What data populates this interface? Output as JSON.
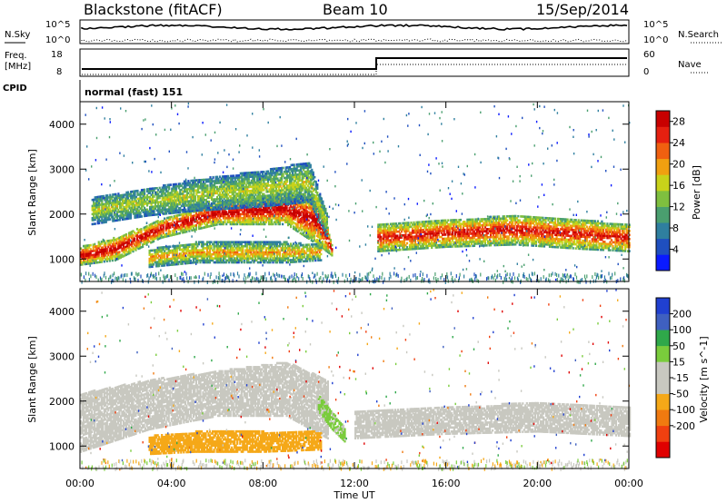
{
  "header": {
    "station": "Blackstone (fitACF)",
    "beam": "Beam 10",
    "date": "15/Sep/2014"
  },
  "panels": {
    "nsky": {
      "label": "N.Sky",
      "right_label": "N.Search",
      "ticks": [
        "10^5",
        "10^0"
      ],
      "right_ticks": [
        "10^5",
        "10^0"
      ]
    },
    "freq": {
      "label_line1": "Freq.",
      "label_line2": "[MHz]",
      "ticks": [
        "18",
        "8"
      ],
      "right_label": "Nave",
      "right_ticks": [
        "60",
        "0"
      ]
    },
    "cpid": {
      "label": "CPID",
      "text": "normal (fast) 151"
    }
  },
  "colors": {
    "power_scale": [
      "#0a1aff",
      "#1f4fbf",
      "#2f7f9f",
      "#4a9f6f",
      "#7fbf3f",
      "#c8d21a",
      "#f0a010",
      "#f06010",
      "#e52010",
      "#c80000"
    ],
    "velocity_scale": [
      "#e00000",
      "#f04010",
      "#f07a10",
      "#f5a818",
      "#c8c8c0",
      "#c8c8c0",
      "#7acc3c",
      "#2fa84a",
      "#3f60c0",
      "#2040d0"
    ]
  },
  "chart_data": [
    {
      "type": "heatmap",
      "title": "",
      "xlabel": "",
      "ylabel": "Slant Range [km]",
      "xlim": [
        0,
        24
      ],
      "ylim": [
        500,
        4500
      ],
      "yticks": [
        1000,
        2000,
        3000,
        4000
      ],
      "colorbar": {
        "label": "Power [dB]",
        "ticks": [
          4,
          8,
          12,
          16,
          20,
          24,
          28
        ],
        "range": [
          0,
          30
        ]
      },
      "bands": [
        {
          "name": "",
          "x": [
            0.0,
            1.5,
            3.5,
            6.0,
            9.0,
            10.5,
            11.0
          ],
          "y_low": [
            900,
            1000,
            1500,
            1800,
            1800,
            1300,
            1100
          ],
          "y_high": [
            1300,
            1500,
            1900,
            2300,
            2500,
            2400,
            1300
          ],
          "power": 26
        },
        {
          "name": "",
          "x": [
            0.5,
            3.0,
            5.0,
            8.0,
            10.0,
            10.8
          ],
          "y_low": [
            1800,
            2000,
            2100,
            2200,
            2300,
            1500
          ],
          "y_high": [
            2400,
            2600,
            2800,
            3000,
            3200,
            2000
          ],
          "power": 14
        },
        {
          "name": "",
          "x": [
            3.0,
            5.0,
            7.0,
            9.0,
            10.5
          ],
          "y_low": [
            850,
            950,
            950,
            950,
            1000
          ],
          "y_high": [
            1250,
            1400,
            1400,
            1400,
            1350
          ],
          "power": 18
        },
        {
          "name": "",
          "x": [
            13.0,
            16.0,
            19.0,
            22.0,
            24.0
          ],
          "y_low": [
            1200,
            1300,
            1350,
            1250,
            1200
          ],
          "y_high": [
            1800,
            1900,
            2000,
            1900,
            1800
          ],
          "power": 24
        }
      ]
    },
    {
      "type": "heatmap",
      "title": "",
      "xlabel": "Time UT",
      "ylabel": "Slant Range [km]",
      "xlim": [
        0,
        24
      ],
      "ylim": [
        500,
        4500
      ],
      "xticks": [
        "00:00",
        "04:00",
        "08:00",
        "12:00",
        "16:00",
        "20:00",
        "00:00"
      ],
      "yticks": [
        1000,
        2000,
        3000,
        4000
      ],
      "colorbar": {
        "label": "Velocity [m s^-1]",
        "ticks": [
          200,
          100,
          50,
          15,
          -15,
          -50,
          -100,
          -200
        ]
      },
      "bands": [
        {
          "name": "",
          "x": [
            0.0,
            3.0,
            6.0,
            9.0,
            10.8
          ],
          "y_low": [
            900,
            1400,
            1700,
            1700,
            1200
          ],
          "y_high": [
            2200,
            2500,
            2700,
            2900,
            2500
          ],
          "velocity": 0
        },
        {
          "name": "",
          "x": [
            3.0,
            5.0,
            8.0,
            10.5
          ],
          "y_low": [
            850,
            900,
            900,
            950
          ],
          "y_high": [
            1250,
            1350,
            1350,
            1350
          ],
          "velocity": -60
        },
        {
          "name": "",
          "x": [
            10.4,
            11.0,
            11.6
          ],
          "y_low": [
            1800,
            1400,
            1100
          ],
          "y_high": [
            2200,
            1800,
            1400
          ],
          "velocity": 40
        },
        {
          "name": "",
          "x": [
            12.0,
            16.0,
            20.0,
            24.0
          ],
          "y_low": [
            1200,
            1300,
            1350,
            1250
          ],
          "y_high": [
            1800,
            1900,
            2000,
            1900
          ],
          "velocity": 0
        }
      ]
    }
  ]
}
